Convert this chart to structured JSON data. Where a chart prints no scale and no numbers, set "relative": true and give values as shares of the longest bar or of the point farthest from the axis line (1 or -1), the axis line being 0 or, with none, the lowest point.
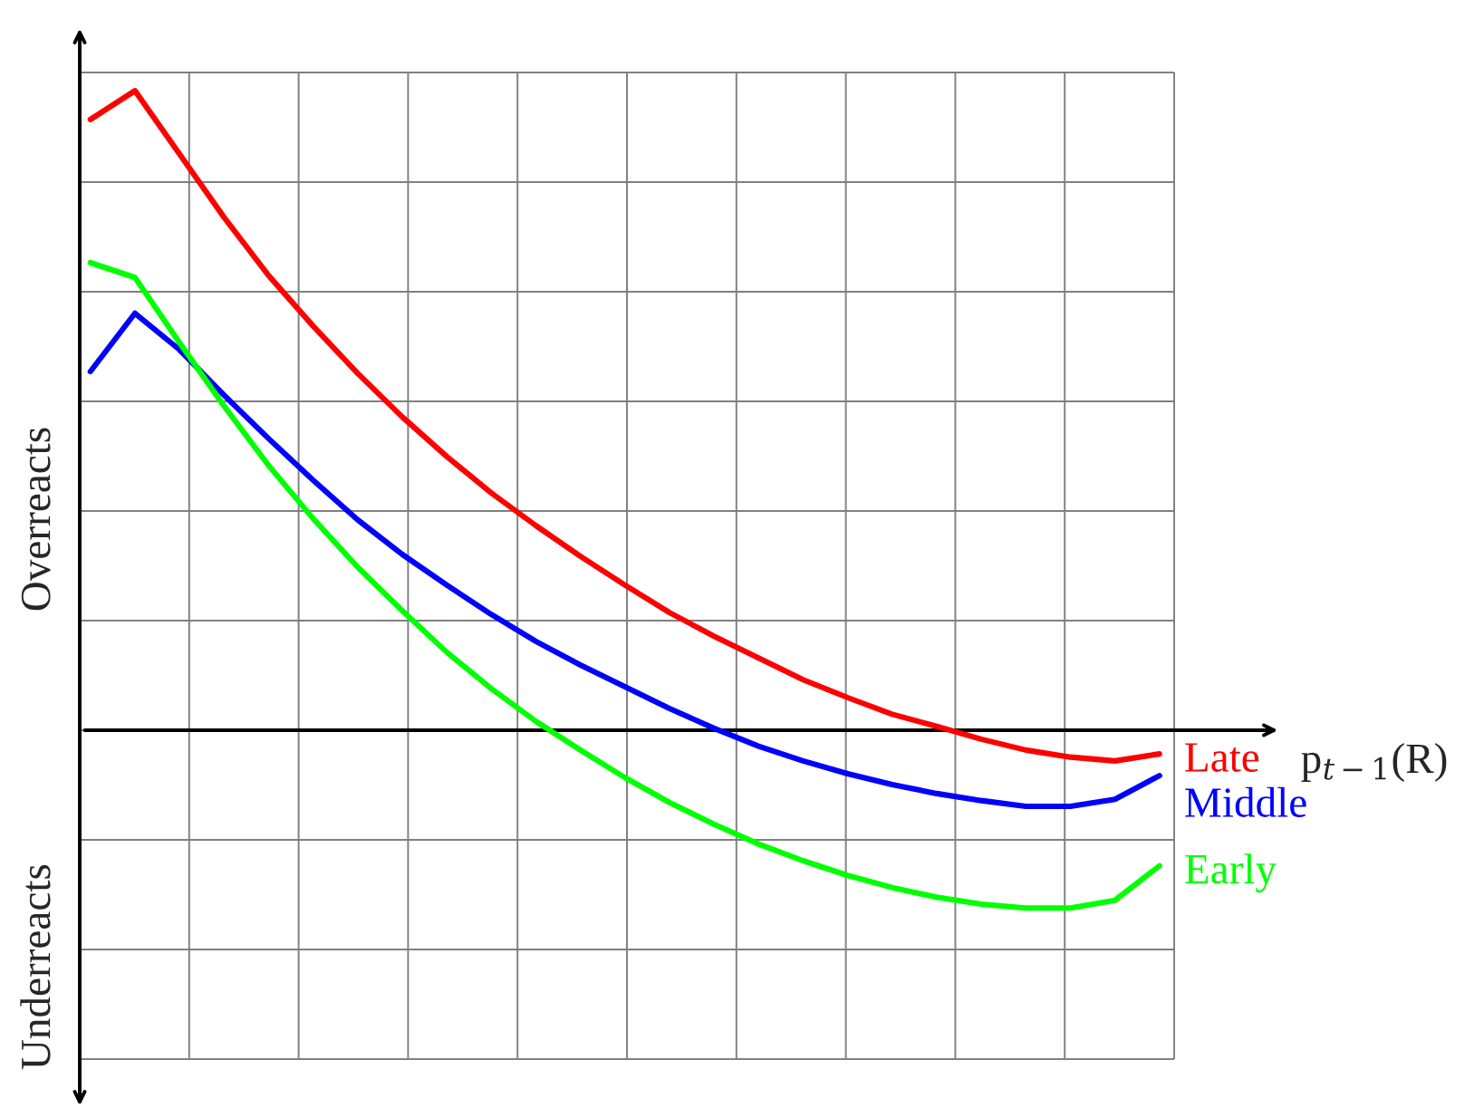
{
  "chart_data": {
    "type": "line",
    "relative": true,
    "xlabel": "p$_{t−1}$(R)",
    "annotations": [
      "Overreacts",
      "Underreacts"
    ],
    "grid": true,
    "marker": "none",
    "line_style": "solid",
    "categories": [
      null,
      null,
      null,
      null,
      null,
      null,
      null,
      null,
      null,
      null,
      null,
      null,
      null,
      null,
      null,
      null,
      null,
      null,
      null,
      null,
      null,
      null,
      null,
      null,
      null
    ],
    "series": [
      {
        "name": "Late",
        "color": "#ff0000",
        "values": [
          0.955,
          1,
          0.901,
          0.802,
          0.711,
          0.632,
          0.558,
          0.49,
          0.428,
          0.371,
          0.32,
          0.272,
          0.227,
          0.184,
          0.147,
          0.113,
          0.079,
          0.051,
          0.025,
          0.006,
          -0.014,
          -0.031,
          -0.042,
          -0.048,
          -0.037
        ]
      },
      {
        "name": "Middle",
        "color": "#0000ff",
        "values": [
          0.561,
          0.652,
          0.595,
          0.524,
          0.456,
          0.391,
          0.329,
          0.275,
          0.227,
          0.181,
          0.139,
          0.102,
          0.068,
          0.034,
          0.003,
          -0.025,
          -0.048,
          -0.068,
          -0.085,
          -0.099,
          -0.11,
          -0.119,
          -0.119,
          -0.108,
          -0.071
        ]
      },
      {
        "name": "Early",
        "color": "#00ff00",
        "values": [
          0.731,
          0.708,
          0.606,
          0.507,
          0.414,
          0.331,
          0.255,
          0.187,
          0.122,
          0.065,
          0.014,
          -0.031,
          -0.074,
          -0.113,
          -0.147,
          -0.178,
          -0.204,
          -0.227,
          -0.246,
          -0.261,
          -0.272,
          -0.278,
          -0.278,
          -0.266,
          -0.212
        ]
      }
    ]
  }
}
